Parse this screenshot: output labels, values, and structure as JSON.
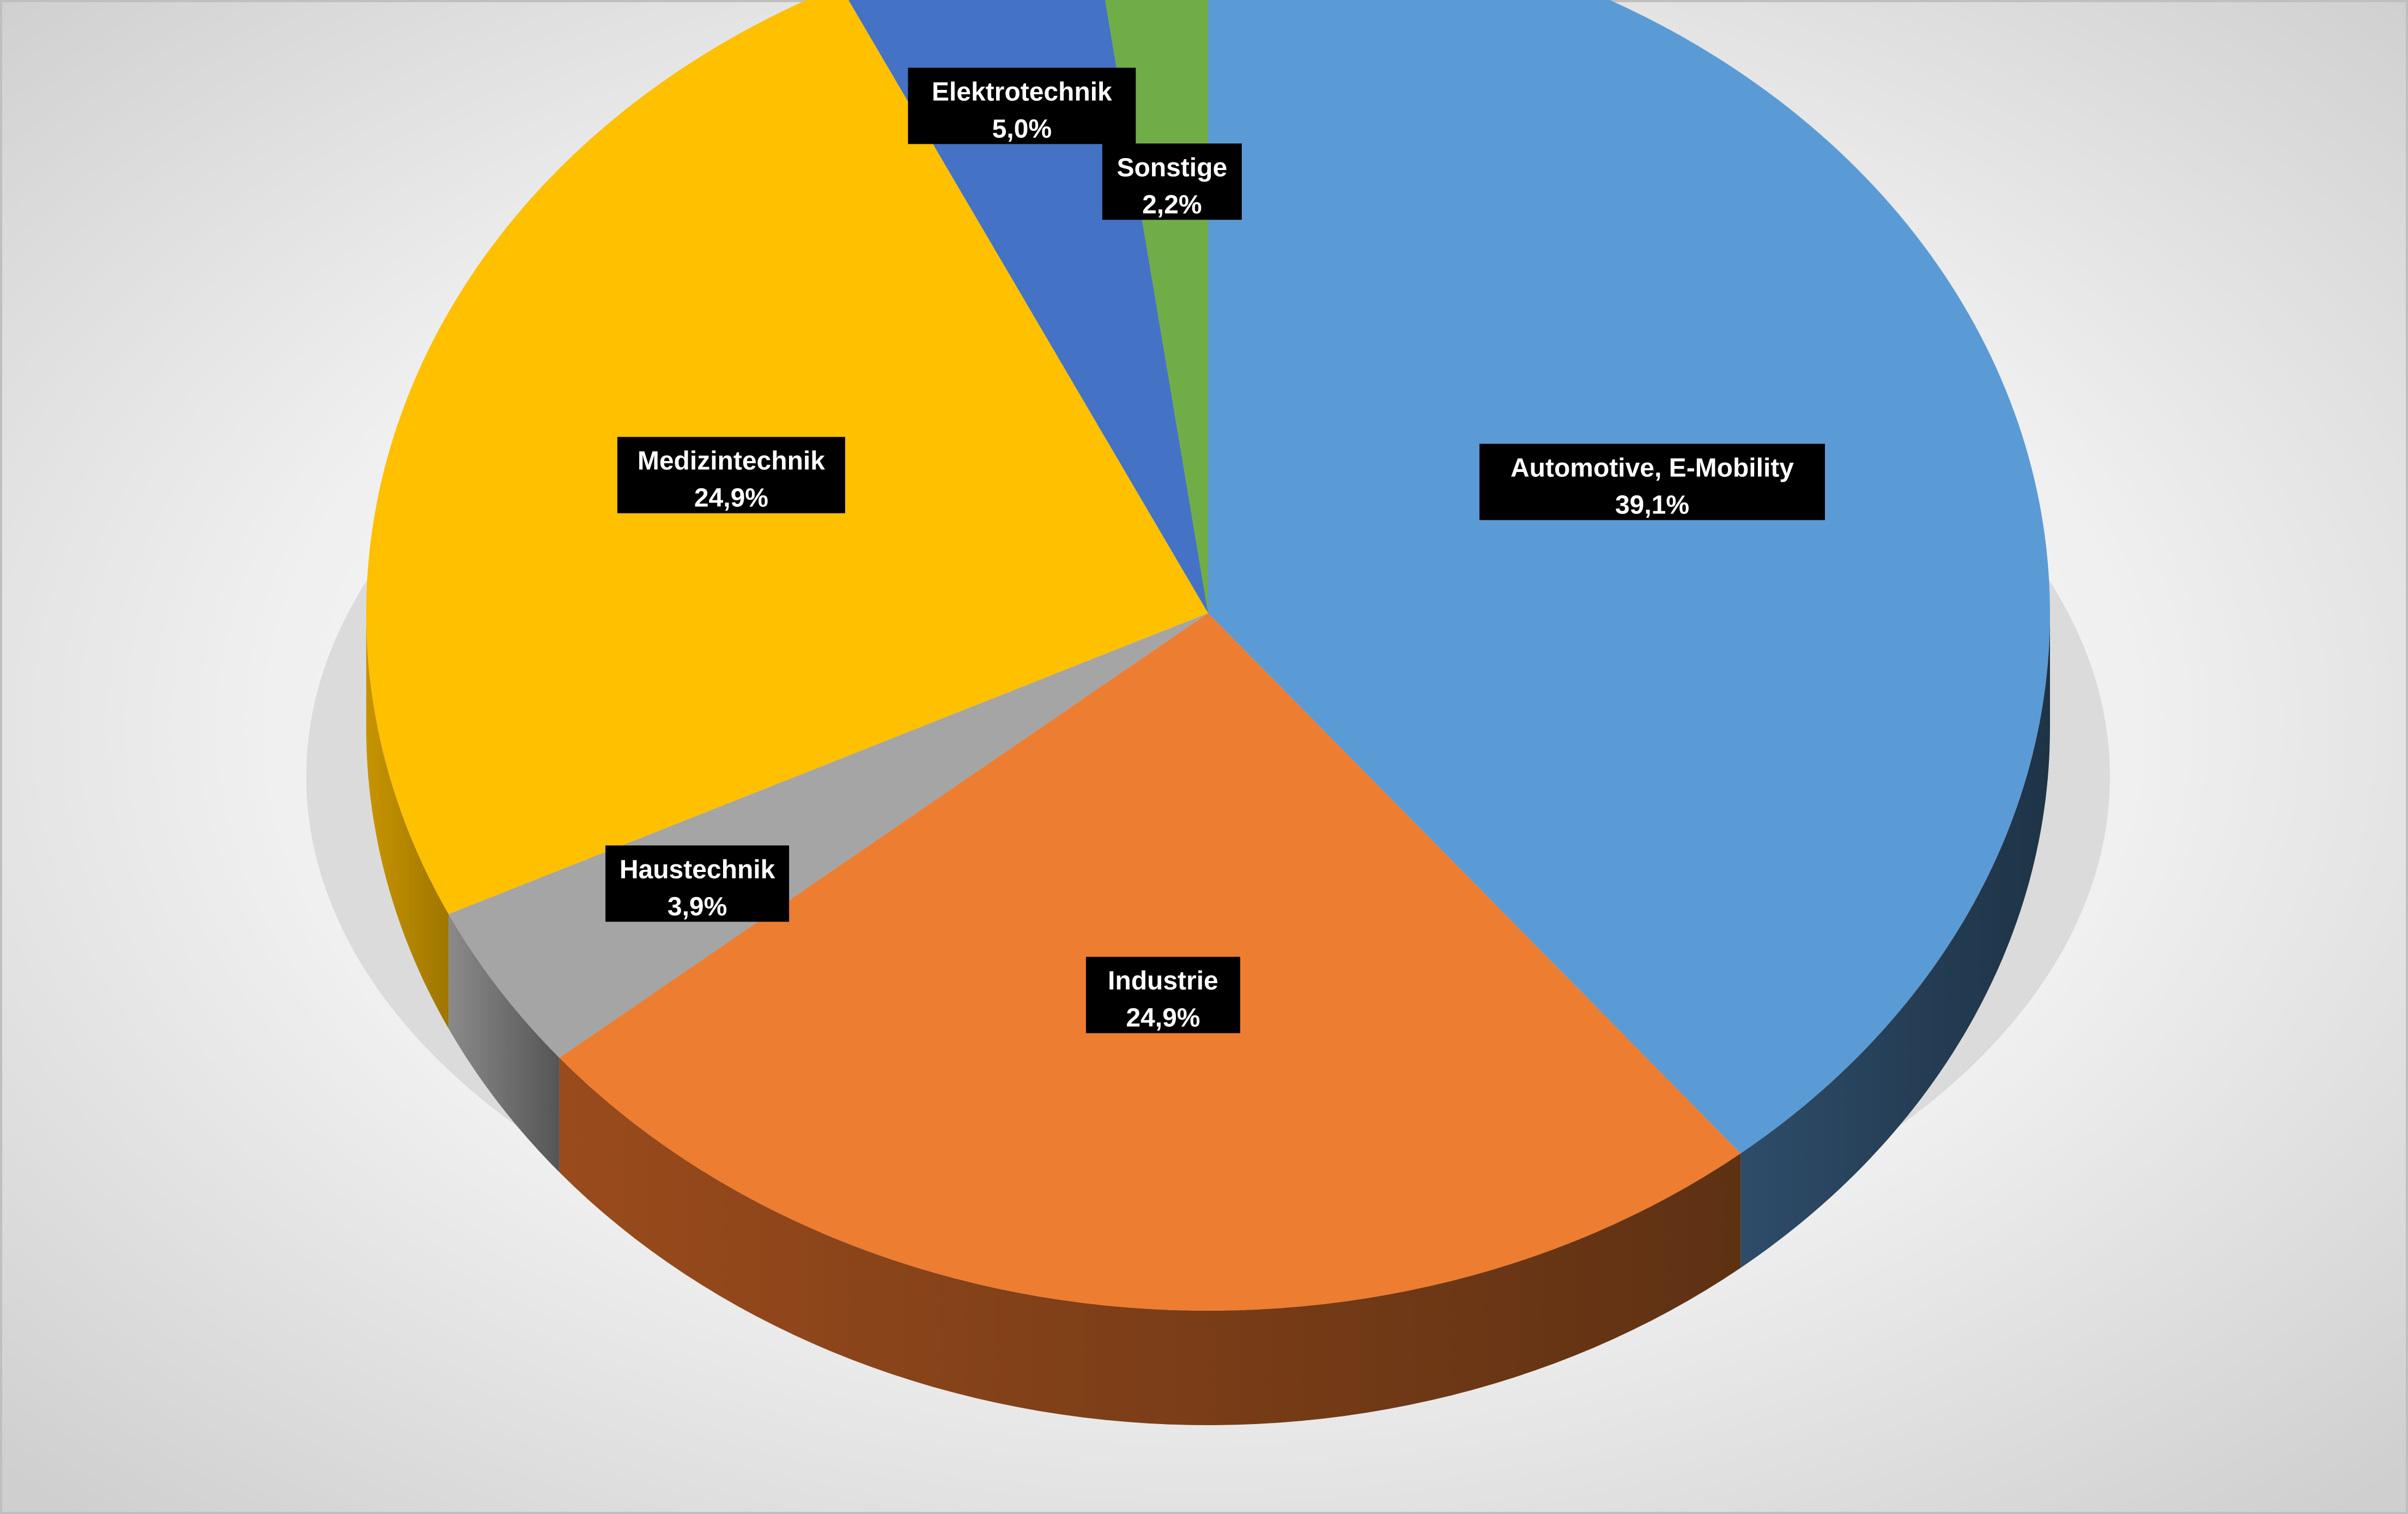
{
  "chart_data": {
    "type": "pie",
    "style": "3d-exploded-none",
    "categories": [
      "Automotive, E-Mobility",
      "Industrie",
      "Haustechnik",
      "Medizintechnik",
      "Elektrotechnik",
      "Sonstige"
    ],
    "values": [
      39.1,
      24.9,
      3.9,
      24.9,
      5.0,
      2.2
    ],
    "value_labels": [
      "39,1%",
      "24,9%",
      "3,9%",
      "24,9%",
      "5,0%",
      "2,2%"
    ],
    "unit": "%",
    "colors": {
      "top": [
        "#5B9BD5",
        "#ED7D31",
        "#A5A5A5",
        "#FFC000",
        "#4472C4",
        "#70AD47"
      ],
      "side_light": [
        "#2E4C69",
        "#9A4B1C",
        "#8A8A8A",
        "#C79400",
        "#30508A",
        "#4F7A32"
      ],
      "side_dark": [
        "#1E3346",
        "#5E3113",
        "#555555",
        "#9E7600",
        "#243D69",
        "#3B5C25"
      ]
    },
    "background": "#E6E6E6",
    "legend": "none",
    "title": ""
  }
}
